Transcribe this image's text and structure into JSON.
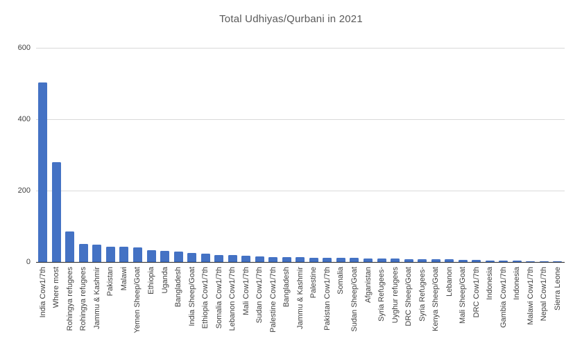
{
  "chart_data": {
    "type": "bar",
    "title": "Total Udhiyas/Qurbani in 2021",
    "xlabel": "",
    "ylabel": "",
    "ylim": [
      0,
      600
    ],
    "yticks": [
      0,
      200,
      400,
      600
    ],
    "grid": "horizontal-light",
    "legend": "none",
    "categories": [
      "India Cow1/7th",
      "Where most",
      "Rohingya refugees",
      "Rohingya refugees",
      "Jammu & Kashmir",
      "Pakistan",
      "Malawi",
      "Yemen Sheep/Goat",
      "Ethiopia",
      "Uganda",
      "Bangladesh",
      "India Sheep/Goat",
      "Ethiopia Cow1/7th",
      "Somalia Cow1/7th",
      "Lebanon Cow1/7th",
      "Mali Cow1/7th",
      "Sudan Cow1/7th",
      "Palestine Cow1/7th",
      "Bangladesh",
      "Jammu & Kashmir",
      "Palestine",
      "Pakistan Cow1/7th",
      "Somalia",
      "Sudan Sheep/Goat",
      "Afganistan",
      "Syria Refugees-",
      "Uyghur refugees",
      "DRC Sheep/Goat",
      "Syria Refugees-",
      "Kenya Sheep/Goat",
      "Lebanon",
      "Mali Sheep/Goat",
      "DRC Cow1/7th",
      "Indonesia",
      "Gambia Cow1/7th",
      "Indonesia",
      "Malawi Cow1/7th",
      "Nepal Cow1/7th",
      "Sierra Leone"
    ],
    "values": [
      503,
      280,
      85,
      50,
      48,
      43,
      42,
      41,
      33,
      31,
      29,
      26,
      24,
      20,
      19,
      18,
      15,
      14,
      13,
      13,
      12,
      12,
      11,
      11,
      10,
      10,
      9,
      8,
      8,
      7,
      7,
      6,
      5,
      4,
      3,
      3,
      2,
      2,
      1
    ],
    "colors": {
      "bar": "#4472C4",
      "title": "#595959",
      "axis_text": "#404040",
      "gridline": "#D9D9D9",
      "axis_line": "#262626",
      "background": "#FFFFFF"
    }
  }
}
